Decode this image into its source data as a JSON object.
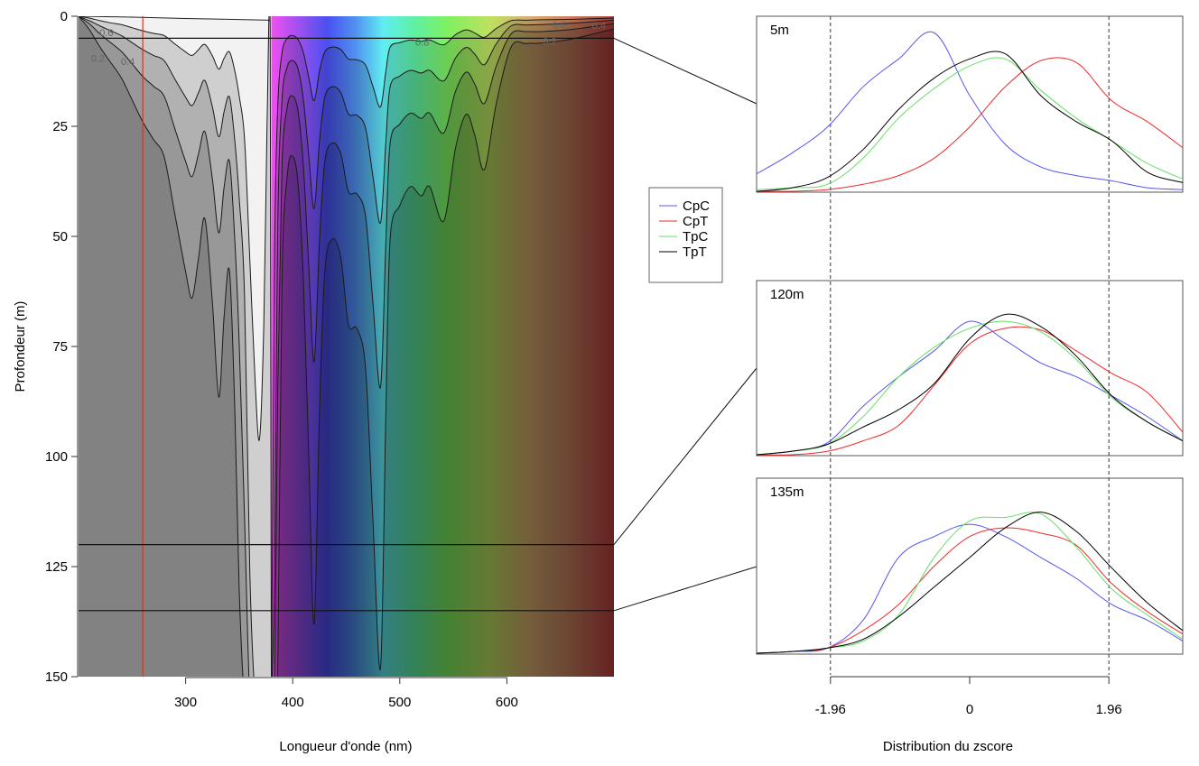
{
  "chart_data": [
    {
      "type": "contour",
      "xlabel": "Longueur d'onde (nm)",
      "ylabel": "Profondeur (m)",
      "xlim": [
        200,
        700
      ],
      "ylim": [
        150,
        0
      ],
      "xticks": [
        "300",
        "400",
        "500",
        "600"
      ],
      "yticks": [
        "0",
        "25",
        "50",
        "75",
        "100",
        "125",
        "150"
      ],
      "background": "visible spectrum 380-700 nm, grey scale below 380 nm",
      "spectrum_colors": [
        {
          "nm": 380,
          "color": "#f050f0"
        },
        {
          "nm": 410,
          "color": "#9050f0"
        },
        {
          "nm": 432,
          "color": "#4a50f0"
        },
        {
          "nm": 458,
          "color": "#5090f0"
        },
        {
          "nm": 485,
          "color": "#60eef0"
        },
        {
          "nm": 515,
          "color": "#60f0a0"
        },
        {
          "nm": 545,
          "color": "#80f060"
        },
        {
          "nm": 585,
          "color": "#c0e060"
        },
        {
          "nm": 620,
          "color": "#d8b070"
        },
        {
          "nm": 660,
          "color": "#c88060"
        },
        {
          "nm": 700,
          "color": "#c04040"
        }
      ],
      "reference_wavelength_nm": 260,
      "reference_line_color": "#e03020",
      "wavelengths": [
        200,
        210,
        220,
        230,
        240,
        250,
        260,
        270,
        280,
        290,
        300,
        306,
        312,
        318,
        325,
        331,
        336,
        341,
        346,
        350,
        355,
        360,
        365,
        369,
        373,
        376,
        379,
        380,
        383,
        386,
        390,
        395,
        400,
        405,
        410,
        415,
        420,
        425,
        430,
        437,
        445,
        452,
        460,
        468,
        475,
        482,
        487,
        491,
        500,
        510,
        520,
        528,
        541,
        552,
        562,
        570,
        579,
        590,
        604,
        618,
        632,
        660,
        700
      ],
      "contours": [
        {
          "level": "0.8",
          "depth": [
            0,
            0.4,
            1.0,
            1.5,
            1.9,
            2.6,
            3.3,
            3.9,
            4.4,
            6.3,
            8.1,
            8.9,
            7.6,
            6.4,
            9.0,
            12.0,
            9.5,
            8.1,
            12.5,
            18.1,
            27.8,
            55.6,
            83.4,
            96,
            70,
            25,
            3,
            150,
            55.6,
            20.9,
            8.3,
            5.0,
            4.4,
            5.3,
            8.3,
            13.9,
            19.2,
            12.5,
            8.1,
            7.0,
            7.6,
            9.7,
            9.9,
            11.1,
            16.0,
            20.6,
            12.5,
            7.0,
            6.0,
            5.4,
            5.7,
            5.4,
            6.5,
            4.2,
            3.1,
            3.8,
            4.8,
            2.8,
            1.0,
            0.9,
            0.8,
            0.7,
            0.4
          ]
        },
        {
          "level": "0.6",
          "depth": [
            0,
            1.0,
            2.2,
            3.3,
            4.4,
            6.0,
            7.6,
            8.9,
            10.1,
            14.3,
            18.4,
            20.3,
            17.4,
            14.6,
            20.6,
            27.4,
            21.6,
            18.4,
            28.5,
            41.2,
            63.4,
            126.8,
            155,
            155,
            155,
            155,
            155,
            155,
            126.8,
            47.6,
            19.0,
            11.4,
            10.1,
            12.0,
            19.0,
            31.7,
            43.7,
            28.5,
            18.4,
            16.0,
            17.4,
            22.2,
            22.5,
            25.4,
            36.5,
            46.9,
            28.5,
            16.0,
            13.6,
            12.3,
            12.9,
            12.3,
            14.7,
            9.5,
            7.1,
            8.6,
            11.0,
            6.3,
            2.2,
            2.0,
            1.9,
            1.6,
            0.9
          ]
        },
        {
          "level": "0.4",
          "depth": [
            0,
            1.7,
            4.0,
            6.0,
            8.0,
            10.8,
            13.7,
            15.9,
            18.2,
            25.6,
            33.0,
            36.4,
            31.3,
            26.2,
            37.0,
            49.2,
            38.7,
            33.0,
            51.2,
            74.0,
            113.8,
            155,
            155,
            155,
            155,
            155,
            155,
            155,
            155,
            85.4,
            34.1,
            20.5,
            18.1,
            21.6,
            34.1,
            56.9,
            78.5,
            51.2,
            33.0,
            28.8,
            31.3,
            39.8,
            40.4,
            45.5,
            65.4,
            84.2,
            51.2,
            28.8,
            24.5,
            22.0,
            23.2,
            22.0,
            26.5,
            17.1,
            12.7,
            15.4,
            19.8,
            11.4,
            4.0,
            3.5,
            3.5,
            3.0,
            1.7
          ]
        },
        {
          "level": "0.2",
          "depth": [
            0,
            3,
            7,
            10.5,
            14,
            19,
            24,
            28,
            32,
            45,
            58,
            64,
            55,
            46,
            65,
            86.5,
            68,
            58,
            90,
            130,
            155,
            155,
            155,
            155,
            155,
            155,
            155,
            155,
            155,
            150,
            60,
            36,
            31.8,
            38,
            60,
            100,
            138,
            90,
            58,
            50.6,
            55,
            70,
            71,
            80,
            115,
            148,
            90,
            50.6,
            43,
            38.7,
            40.8,
            38.7,
            46.5,
            30,
            22.3,
            27,
            34.8,
            20,
            7,
            6.2,
            6.1,
            5.2,
            2.9
          ]
        }
      ],
      "surface_contour": [
        [
          200,
          0
        ],
        [
          250,
          0.2
        ],
        [
          300,
          0.5
        ],
        [
          340,
          0.7
        ],
        [
          379,
          0.9
        ]
      ],
      "contour_labels": [
        {
          "text": "0.6",
          "nm": 226,
          "depth": 3.7
        },
        {
          "text": "0.4",
          "nm": 246,
          "depth": 10.2
        },
        {
          "text": "0.2",
          "nm": 218,
          "depth": 9.5
        },
        {
          "text": "0.8",
          "nm": 521,
          "depth": 5.8
        },
        {
          "text": "0.6",
          "nm": 649,
          "depth": 1.9
        },
        {
          "text": "0.4",
          "nm": 686,
          "depth": 2.1
        },
        {
          "text": "0.2",
          "nm": 640,
          "depth": 5.6
        }
      ],
      "profile_depths": [
        5,
        120,
        135
      ]
    },
    {
      "type": "line",
      "xlabel": "Distribution du zscore",
      "xlim": [
        -3,
        3
      ],
      "xticks": [
        "-1.96",
        "0",
        "1.96"
      ],
      "xtick_values": [
        -1.96,
        0,
        1.96
      ],
      "reference_lines": [
        -1.96,
        1.96
      ],
      "x": [
        -3,
        -2.5,
        -2,
        -1.5,
        -1,
        -0.5,
        0,
        0.5,
        1,
        1.5,
        2,
        2.5,
        3
      ],
      "legend": {
        "position": "left, between plots",
        "entries": [
          "CpC",
          "CpT",
          "TpC",
          "TpT"
        ]
      },
      "series_colors": {
        "CpC": "#5555ee",
        "CpT": "#ee2a2a",
        "TpC": "#66e066",
        "TpT": "#000000"
      },
      "panels": [
        {
          "label": "5m",
          "series": [
            {
              "name": "CpC",
              "values": [
                0.1,
                0.22,
                0.37,
                0.6,
                0.76,
                0.91,
                0.55,
                0.27,
                0.14,
                0.09,
                0.06,
                0.02,
                0.01
              ]
            },
            {
              "name": "CpT",
              "values": [
                0.0,
                0.0,
                0.01,
                0.04,
                0.09,
                0.19,
                0.37,
                0.6,
                0.75,
                0.74,
                0.52,
                0.4,
                0.25
              ]
            },
            {
              "name": "TpC",
              "values": [
                0.01,
                0.02,
                0.04,
                0.19,
                0.42,
                0.59,
                0.72,
                0.76,
                0.58,
                0.42,
                0.29,
                0.16,
                0.07
              ]
            },
            {
              "name": "TpT",
              "values": [
                0.0,
                0.02,
                0.08,
                0.24,
                0.47,
                0.65,
                0.76,
                0.79,
                0.55,
                0.4,
                0.29,
                0.11,
                0.05
              ]
            }
          ]
        },
        {
          "label": "120m",
          "series": [
            {
              "name": "CpC",
              "values": [
                0.0,
                0.02,
                0.07,
                0.28,
                0.45,
                0.6,
                0.77,
                0.66,
                0.53,
                0.45,
                0.34,
                0.22,
                0.08
              ]
            },
            {
              "name": "CpT",
              "values": [
                0.0,
                0.0,
                0.02,
                0.08,
                0.17,
                0.4,
                0.64,
                0.73,
                0.72,
                0.6,
                0.47,
                0.36,
                0.13
              ]
            },
            {
              "name": "TpC",
              "values": [
                0.0,
                0.02,
                0.06,
                0.22,
                0.45,
                0.62,
                0.73,
                0.77,
                0.71,
                0.55,
                0.33,
                0.19,
                0.08
              ]
            },
            {
              "name": "TpT",
              "values": [
                0.0,
                0.02,
                0.06,
                0.16,
                0.26,
                0.41,
                0.67,
                0.81,
                0.74,
                0.57,
                0.34,
                0.19,
                0.08
              ]
            }
          ]
        },
        {
          "label": "135m",
          "series": [
            {
              "name": "CpC",
              "values": [
                0.0,
                0.01,
                0.03,
                0.19,
                0.55,
                0.67,
                0.74,
                0.67,
                0.55,
                0.43,
                0.28,
                0.19,
                0.07
              ]
            },
            {
              "name": "CpT",
              "values": [
                0.0,
                0.01,
                0.03,
                0.13,
                0.28,
                0.5,
                0.67,
                0.72,
                0.69,
                0.62,
                0.4,
                0.24,
                0.11
              ]
            },
            {
              "name": "TpC",
              "values": [
                0.0,
                0.01,
                0.03,
                0.07,
                0.22,
                0.55,
                0.76,
                0.78,
                0.8,
                0.61,
                0.37,
                0.22,
                0.08
              ]
            },
            {
              "name": "TpT",
              "values": [
                0.0,
                0.01,
                0.03,
                0.08,
                0.21,
                0.38,
                0.55,
                0.72,
                0.81,
                0.7,
                0.49,
                0.29,
                0.13
              ]
            }
          ]
        }
      ]
    }
  ]
}
